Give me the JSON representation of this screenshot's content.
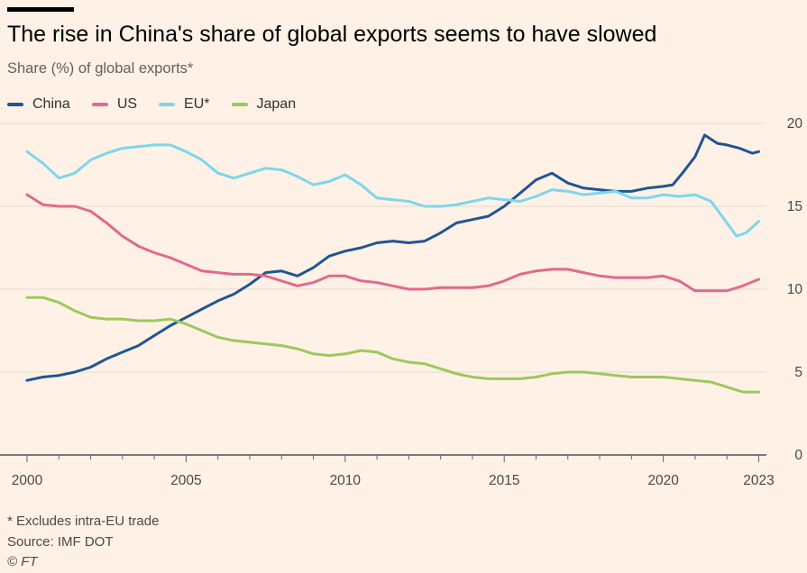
{
  "header": {
    "title": "The rise in China's share of global exports seems to have slowed",
    "subtitle": "Share (%) of global exports*"
  },
  "legend": [
    {
      "label": "China",
      "color": "#1F5595"
    },
    {
      "label": "US",
      "color": "#E06A8C"
    },
    {
      "label": "EU*",
      "color": "#7DD6EC"
    },
    {
      "label": "Japan",
      "color": "#9EC85C"
    }
  ],
  "footer": {
    "note": "* Excludes intra-EU trade",
    "source": "Source: IMF DOT",
    "credit": "© FT"
  },
  "chart_data": {
    "type": "line",
    "title": "The rise in China's share of global exports seems to have slowed",
    "subtitle": "Share (%) of global exports*",
    "xlabel": "",
    "ylabel": "",
    "xlim": [
      2000,
      2023.1
    ],
    "ylim": [
      0,
      20
    ],
    "x_ticks": [
      2000,
      2005,
      2010,
      2015,
      2020,
      2023
    ],
    "y_ticks": [
      0,
      5,
      10,
      15,
      20
    ],
    "y_axis_position": "right",
    "grid": "horizontal",
    "legend_position": "top-left",
    "series": [
      {
        "name": "China",
        "color": "#1F5595",
        "points": [
          [
            2000,
            4.5
          ],
          [
            2000.5,
            4.7
          ],
          [
            2001,
            4.8
          ],
          [
            2001.5,
            5.0
          ],
          [
            2002,
            5.3
          ],
          [
            2002.5,
            5.8
          ],
          [
            2003,
            6.2
          ],
          [
            2003.5,
            6.6
          ],
          [
            2004,
            7.2
          ],
          [
            2004.5,
            7.8
          ],
          [
            2005,
            8.3
          ],
          [
            2005.5,
            8.8
          ],
          [
            2006,
            9.3
          ],
          [
            2006.5,
            9.7
          ],
          [
            2007,
            10.3
          ],
          [
            2007.5,
            11.0
          ],
          [
            2008,
            11.1
          ],
          [
            2008.5,
            10.8
          ],
          [
            2009,
            11.3
          ],
          [
            2009.5,
            12.0
          ],
          [
            2010,
            12.3
          ],
          [
            2010.5,
            12.5
          ],
          [
            2011,
            12.8
          ],
          [
            2011.5,
            12.9
          ],
          [
            2012,
            12.8
          ],
          [
            2012.5,
            12.9
          ],
          [
            2013,
            13.4
          ],
          [
            2013.5,
            14.0
          ],
          [
            2014,
            14.2
          ],
          [
            2014.5,
            14.4
          ],
          [
            2015,
            15.0
          ],
          [
            2015.5,
            15.8
          ],
          [
            2016,
            16.6
          ],
          [
            2016.5,
            17.0
          ],
          [
            2017,
            16.4
          ],
          [
            2017.5,
            16.1
          ],
          [
            2018,
            16.0
          ],
          [
            2018.5,
            15.9
          ],
          [
            2019,
            15.9
          ],
          [
            2019.5,
            16.1
          ],
          [
            2020,
            16.2
          ],
          [
            2020.3,
            16.3
          ],
          [
            2020.6,
            17.0
          ],
          [
            2021,
            18.0
          ],
          [
            2021.3,
            19.3
          ],
          [
            2021.7,
            18.8
          ],
          [
            2022,
            18.7
          ],
          [
            2022.4,
            18.5
          ],
          [
            2022.8,
            18.2
          ],
          [
            2023,
            18.3
          ]
        ]
      },
      {
        "name": "US",
        "color": "#E06A8C",
        "points": [
          [
            2000,
            15.7
          ],
          [
            2000.5,
            15.1
          ],
          [
            2001,
            15.0
          ],
          [
            2001.5,
            15.0
          ],
          [
            2002,
            14.7
          ],
          [
            2002.5,
            14.0
          ],
          [
            2003,
            13.2
          ],
          [
            2003.5,
            12.6
          ],
          [
            2004,
            12.2
          ],
          [
            2004.5,
            11.9
          ],
          [
            2005,
            11.5
          ],
          [
            2005.5,
            11.1
          ],
          [
            2006,
            11.0
          ],
          [
            2006.5,
            10.9
          ],
          [
            2007,
            10.9
          ],
          [
            2007.5,
            10.8
          ],
          [
            2008,
            10.5
          ],
          [
            2008.5,
            10.2
          ],
          [
            2009,
            10.4
          ],
          [
            2009.5,
            10.8
          ],
          [
            2010,
            10.8
          ],
          [
            2010.5,
            10.5
          ],
          [
            2011,
            10.4
          ],
          [
            2011.5,
            10.2
          ],
          [
            2012,
            10.0
          ],
          [
            2012.5,
            10.0
          ],
          [
            2013,
            10.1
          ],
          [
            2013.5,
            10.1
          ],
          [
            2014,
            10.1
          ],
          [
            2014.5,
            10.2
          ],
          [
            2015,
            10.5
          ],
          [
            2015.5,
            10.9
          ],
          [
            2016,
            11.1
          ],
          [
            2016.5,
            11.2
          ],
          [
            2017,
            11.2
          ],
          [
            2017.5,
            11.0
          ],
          [
            2018,
            10.8
          ],
          [
            2018.5,
            10.7
          ],
          [
            2019,
            10.7
          ],
          [
            2019.5,
            10.7
          ],
          [
            2020,
            10.8
          ],
          [
            2020.5,
            10.5
          ],
          [
            2021,
            9.9
          ],
          [
            2021.5,
            9.9
          ],
          [
            2022,
            9.9
          ],
          [
            2022.5,
            10.2
          ],
          [
            2023,
            10.6
          ]
        ]
      },
      {
        "name": "EU*",
        "color": "#7DD6EC",
        "points": [
          [
            2000,
            18.3
          ],
          [
            2000.5,
            17.6
          ],
          [
            2001,
            16.7
          ],
          [
            2001.5,
            17.0
          ],
          [
            2002,
            17.8
          ],
          [
            2002.5,
            18.2
          ],
          [
            2003,
            18.5
          ],
          [
            2003.5,
            18.6
          ],
          [
            2004,
            18.7
          ],
          [
            2004.5,
            18.7
          ],
          [
            2005,
            18.3
          ],
          [
            2005.5,
            17.8
          ],
          [
            2006,
            17.0
          ],
          [
            2006.5,
            16.7
          ],
          [
            2007,
            17.0
          ],
          [
            2007.5,
            17.3
          ],
          [
            2008,
            17.2
          ],
          [
            2008.5,
            16.8
          ],
          [
            2009,
            16.3
          ],
          [
            2009.5,
            16.5
          ],
          [
            2010,
            16.9
          ],
          [
            2010.5,
            16.3
          ],
          [
            2011,
            15.5
          ],
          [
            2011.5,
            15.4
          ],
          [
            2012,
            15.3
          ],
          [
            2012.5,
            15.0
          ],
          [
            2013,
            15.0
          ],
          [
            2013.5,
            15.1
          ],
          [
            2014,
            15.3
          ],
          [
            2014.5,
            15.5
          ],
          [
            2015,
            15.4
          ],
          [
            2015.5,
            15.3
          ],
          [
            2016,
            15.6
          ],
          [
            2016.5,
            16.0
          ],
          [
            2017,
            15.9
          ],
          [
            2017.5,
            15.7
          ],
          [
            2018,
            15.8
          ],
          [
            2018.5,
            15.9
          ],
          [
            2019,
            15.5
          ],
          [
            2019.5,
            15.5
          ],
          [
            2020,
            15.7
          ],
          [
            2020.5,
            15.6
          ],
          [
            2021,
            15.7
          ],
          [
            2021.5,
            15.3
          ],
          [
            2022,
            14.0
          ],
          [
            2022.3,
            13.2
          ],
          [
            2022.6,
            13.4
          ],
          [
            2023,
            14.1
          ]
        ]
      },
      {
        "name": "Japan",
        "color": "#9EC85C",
        "points": [
          [
            2000,
            9.5
          ],
          [
            2000.5,
            9.5
          ],
          [
            2001,
            9.2
          ],
          [
            2001.5,
            8.7
          ],
          [
            2002,
            8.3
          ],
          [
            2002.5,
            8.2
          ],
          [
            2003,
            8.2
          ],
          [
            2003.5,
            8.1
          ],
          [
            2004,
            8.1
          ],
          [
            2004.5,
            8.2
          ],
          [
            2005,
            7.9
          ],
          [
            2005.5,
            7.5
          ],
          [
            2006,
            7.1
          ],
          [
            2006.5,
            6.9
          ],
          [
            2007,
            6.8
          ],
          [
            2007.5,
            6.7
          ],
          [
            2008,
            6.6
          ],
          [
            2008.5,
            6.4
          ],
          [
            2009,
            6.1
          ],
          [
            2009.5,
            6.0
          ],
          [
            2010,
            6.1
          ],
          [
            2010.5,
            6.3
          ],
          [
            2011,
            6.2
          ],
          [
            2011.5,
            5.8
          ],
          [
            2012,
            5.6
          ],
          [
            2012.5,
            5.5
          ],
          [
            2013,
            5.2
          ],
          [
            2013.5,
            4.9
          ],
          [
            2014,
            4.7
          ],
          [
            2014.5,
            4.6
          ],
          [
            2015,
            4.6
          ],
          [
            2015.5,
            4.6
          ],
          [
            2016,
            4.7
          ],
          [
            2016.5,
            4.9
          ],
          [
            2017,
            5.0
          ],
          [
            2017.5,
            5.0
          ],
          [
            2018,
            4.9
          ],
          [
            2018.5,
            4.8
          ],
          [
            2019,
            4.7
          ],
          [
            2019.5,
            4.7
          ],
          [
            2020,
            4.7
          ],
          [
            2020.5,
            4.6
          ],
          [
            2021,
            4.5
          ],
          [
            2021.5,
            4.4
          ],
          [
            2022,
            4.1
          ],
          [
            2022.5,
            3.8
          ],
          [
            2023,
            3.8
          ]
        ]
      }
    ]
  }
}
